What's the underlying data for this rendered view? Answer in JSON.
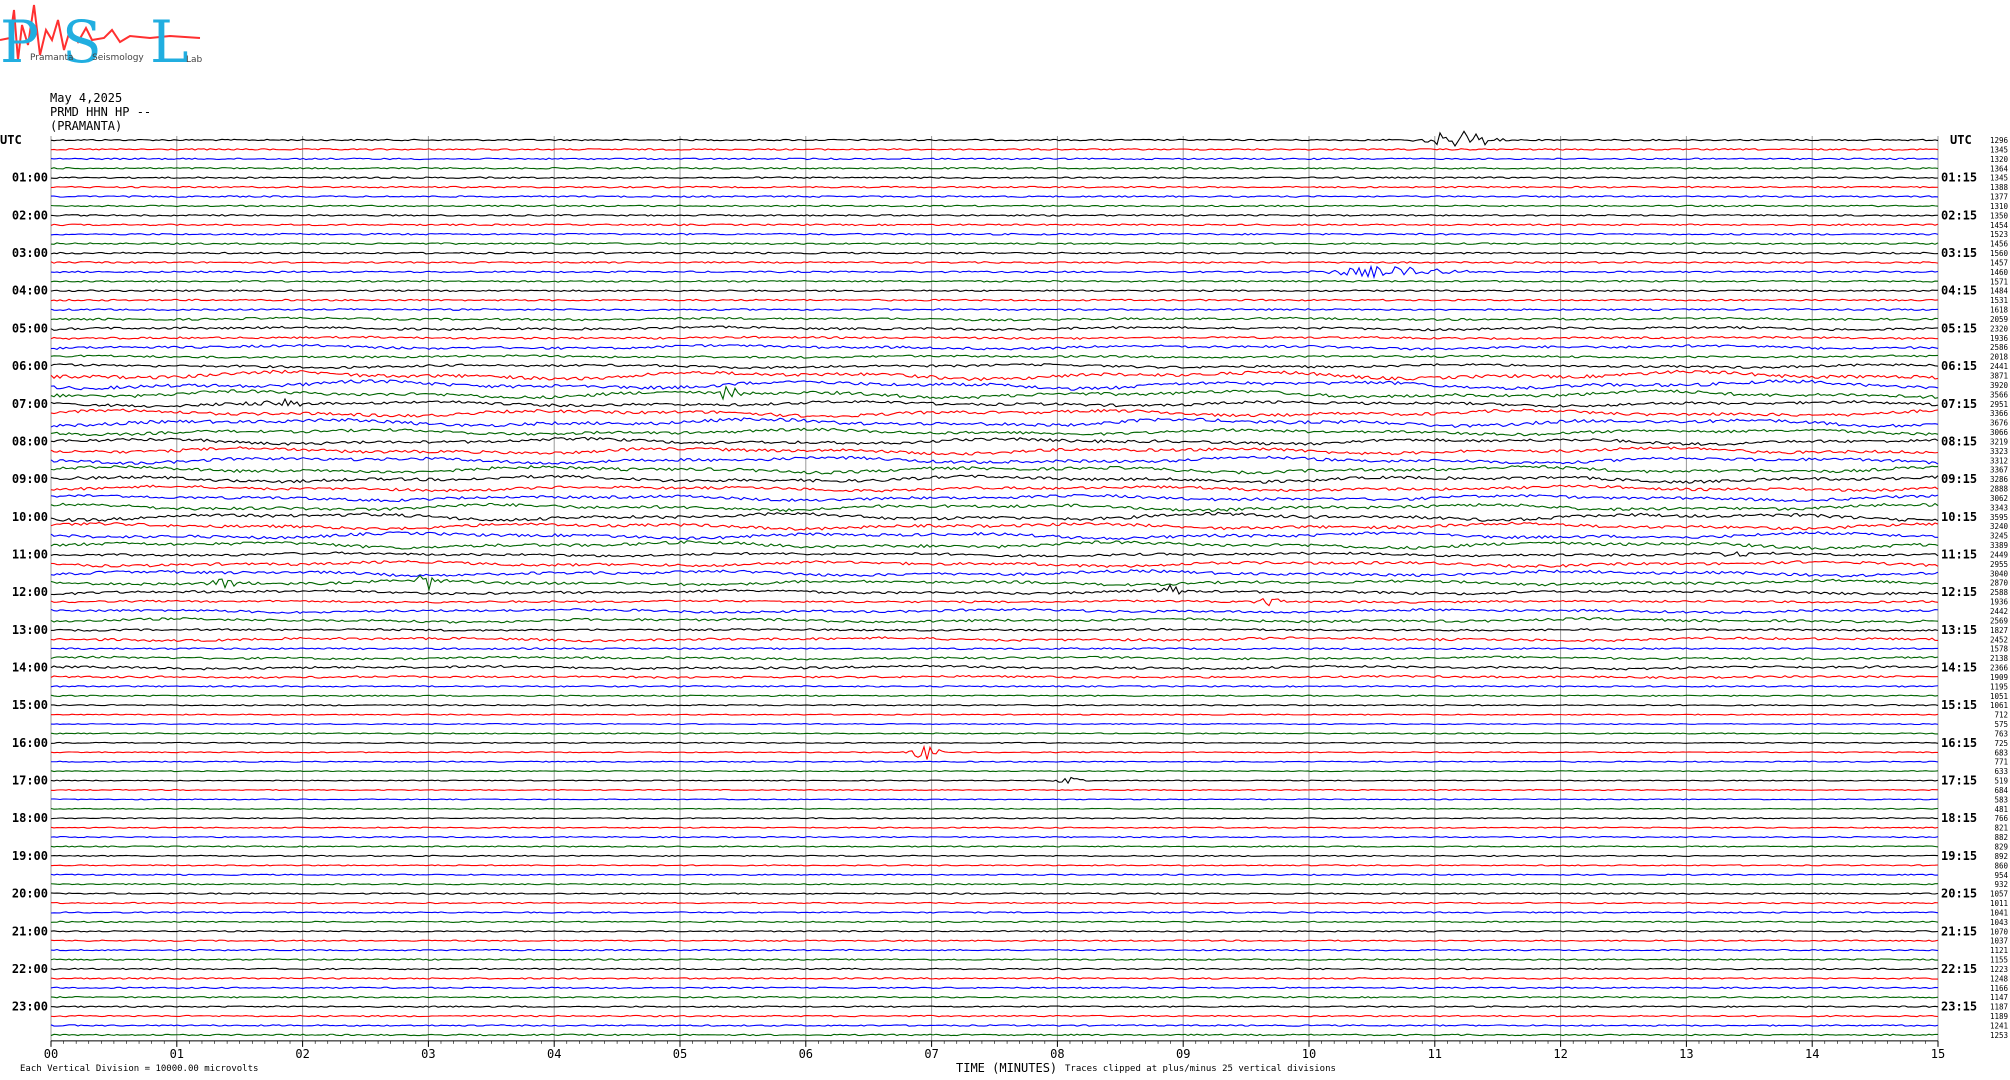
{
  "logo": {
    "letters": [
      "P",
      "S",
      "L"
    ],
    "words": [
      "Pramanta",
      "Seismology",
      "Lab"
    ]
  },
  "header": {
    "date": "May 4,2025",
    "station": "PRMD HHN HP --",
    "location": "(PRAMANTA)"
  },
  "axis": {
    "left_title": "UTC",
    "right_title": "UTC",
    "x_title": "TIME (MINUTES)",
    "x_ticks": [
      "00",
      "01",
      "02",
      "03",
      "04",
      "05",
      "06",
      "07",
      "08",
      "09",
      "10",
      "11",
      "12",
      "13",
      "14",
      "15"
    ],
    "left_hours": [
      "01:00",
      "02:00",
      "03:00",
      "04:00",
      "05:00",
      "06:00",
      "07:00",
      "08:00",
      "09:00",
      "10:00",
      "11:00",
      "12:00",
      "13:00",
      "14:00",
      "15:00",
      "16:00",
      "17:00",
      "18:00",
      "19:00",
      "20:00",
      "21:00",
      "22:00",
      "23:00"
    ],
    "right_hours": [
      "01:15",
      "02:15",
      "03:15",
      "04:15",
      "05:15",
      "06:15",
      "07:15",
      "08:15",
      "09:15",
      "10:15",
      "11:15",
      "12:15",
      "13:15",
      "14:15",
      "15:15",
      "16:15",
      "17:15",
      "18:15",
      "19:15",
      "20:15",
      "21:15",
      "22:15",
      "23:15"
    ]
  },
  "footer": {
    "vertical_division": "Each Vertical Division = 10000.00 microvolts",
    "clipping": "Traces clipped at plus/minus 25 vertical divisions"
  },
  "chart_data": {
    "type": "line",
    "title": "",
    "xlabel": "TIME (MINUTES)",
    "ylabel": "UTC",
    "xlim": [
      0,
      15
    ],
    "n_traces": 96,
    "trace_color_cycle": [
      "#000000",
      "#ff0000",
      "#0000ff",
      "#006400"
    ],
    "trace_amplitudes": [
      1296,
      1345,
      1320,
      1364,
      1345,
      1388,
      1377,
      1310,
      1350,
      1454,
      1523,
      1456,
      1560,
      1457,
      1460,
      1571,
      1484,
      1531,
      1618,
      2059,
      2320,
      1936,
      2586,
      2018,
      2441,
      3871,
      3920,
      3566,
      2951,
      3366,
      3676,
      3066,
      3219,
      3323,
      3312,
      3367,
      3286,
      2888,
      3062,
      3343,
      3595,
      3240,
      3245,
      3389,
      2449,
      2955,
      3040,
      2870,
      2588,
      1936,
      2442,
      2569,
      1827,
      2452,
      1578,
      2138,
      2366,
      1909,
      1195,
      1051,
      1061,
      712,
      575,
      763,
      725,
      683,
      771,
      633,
      519,
      684,
      583,
      481,
      766,
      821,
      882,
      829,
      892,
      860,
      954,
      932,
      1057,
      1011,
      1041,
      1043,
      1070,
      1037,
      1121,
      1155,
      1223,
      1248,
      1166,
      1147,
      1187,
      1189,
      1241,
      1253
    ],
    "events": [
      {
        "trace": 0,
        "minute": 11.2,
        "amp": 10,
        "width": 0.35
      },
      {
        "trace": 14,
        "minute": 10.6,
        "amp": 5,
        "width": 0.7
      },
      {
        "trace": 27,
        "minute": 5.4,
        "amp": 9,
        "width": 0.1
      },
      {
        "trace": 28,
        "minute": 1.8,
        "amp": 5,
        "width": 0.3
      },
      {
        "trace": 44,
        "minute": 13.4,
        "amp": 9,
        "width": 0.12
      },
      {
        "trace": 47,
        "minute": 1.4,
        "amp": 6,
        "width": 0.15
      },
      {
        "trace": 47,
        "minute": 3.0,
        "amp": 10,
        "width": 0.12
      },
      {
        "trace": 48,
        "minute": 8.9,
        "amp": 6,
        "width": 0.15
      },
      {
        "trace": 49,
        "minute": 9.7,
        "amp": 6,
        "width": 0.12
      },
      {
        "trace": 65,
        "minute": 6.95,
        "amp": 8,
        "width": 0.15
      },
      {
        "trace": 68,
        "minute": 8.1,
        "amp": 3,
        "width": 0.15
      }
    ]
  }
}
